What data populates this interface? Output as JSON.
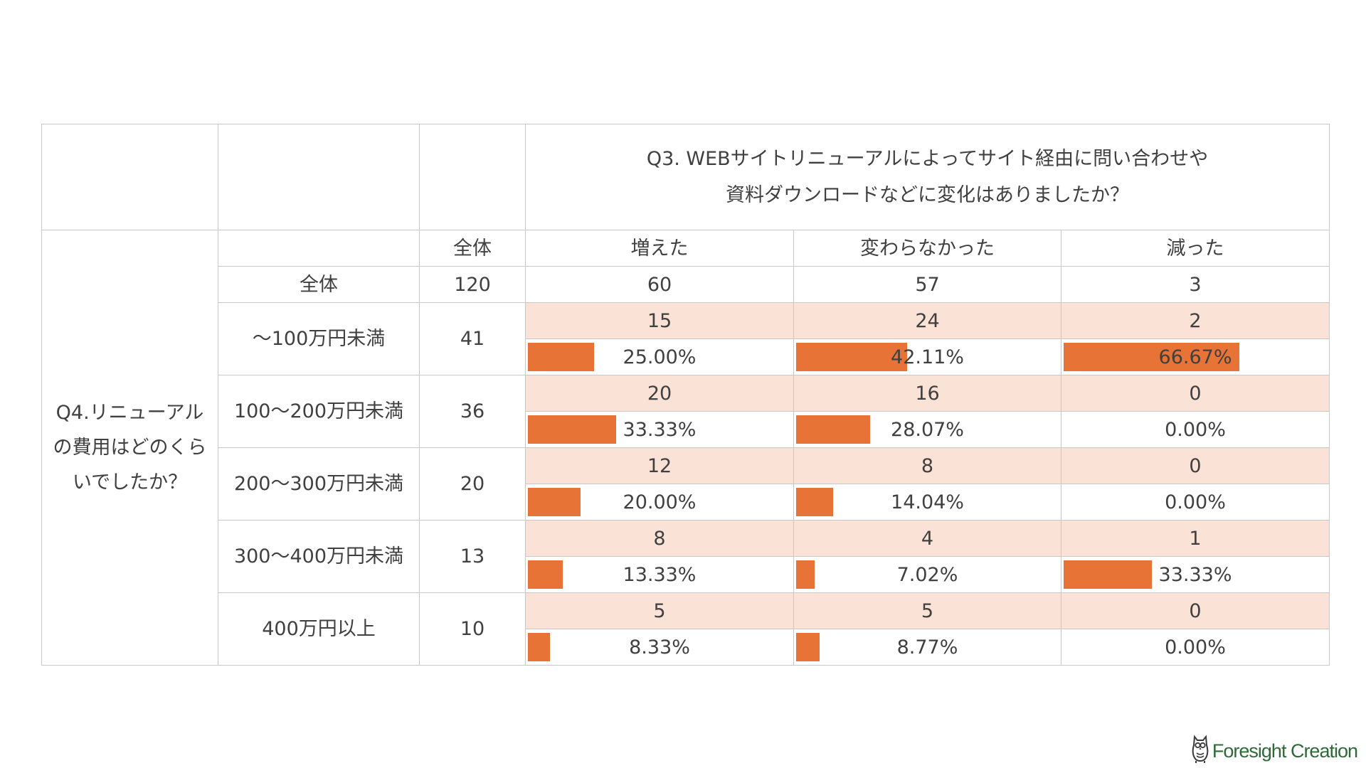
{
  "chart_data": {
    "type": "table",
    "title_lines": [
      "Q3. WEBサイトリニューアルによってサイト経由に問い合わせや",
      "資料ダウンロードなどに変化はありましたか？"
    ],
    "row_question": "Q4.リニューアルの費用はどのくらいでしたか？",
    "total_header": "全体",
    "columns": [
      "増えた",
      "変わらなかった",
      "減った"
    ],
    "total_row": {
      "label": "全体",
      "n": 120,
      "counts": [
        60,
        57,
        3
      ]
    },
    "rows": [
      {
        "label": "～100万円未満",
        "n": 41,
        "counts": [
          15,
          24,
          2
        ],
        "percents": [
          25.0,
          42.11,
          66.67
        ],
        "percent_labels": [
          "25.00%",
          "42.11%",
          "66.67%"
        ]
      },
      {
        "label": "100～200万円未満",
        "n": 36,
        "counts": [
          20,
          16,
          0
        ],
        "percents": [
          33.33,
          28.07,
          0.0
        ],
        "percent_labels": [
          "33.33%",
          "28.07%",
          "0.00%"
        ]
      },
      {
        "label": "200～300万円未満",
        "n": 20,
        "counts": [
          12,
          8,
          0
        ],
        "percents": [
          20.0,
          14.04,
          0.0
        ],
        "percent_labels": [
          "20.00%",
          "14.04%",
          "0.00%"
        ]
      },
      {
        "label": "300～400万円未満",
        "n": 13,
        "counts": [
          8,
          4,
          1
        ],
        "percents": [
          13.33,
          7.02,
          33.33
        ],
        "percent_labels": [
          "13.33%",
          "7.02%",
          "33.33%"
        ]
      },
      {
        "label": "400万円以上",
        "n": 10,
        "counts": [
          5,
          5,
          0
        ],
        "percents": [
          8.33,
          8.77,
          0.0
        ],
        "percent_labels": [
          "8.33%",
          "8.77%",
          "0.00%"
        ]
      }
    ],
    "bar_scale_max_percent": 100
  },
  "colors": {
    "bar": "#e87336",
    "count_fill": "#fbe2d6",
    "grid": "#c8c8c8",
    "text": "#404040",
    "logo_text": "#2d6a36"
  },
  "logo": {
    "text": "Foresight Creation",
    "icon": "owl-icon"
  }
}
